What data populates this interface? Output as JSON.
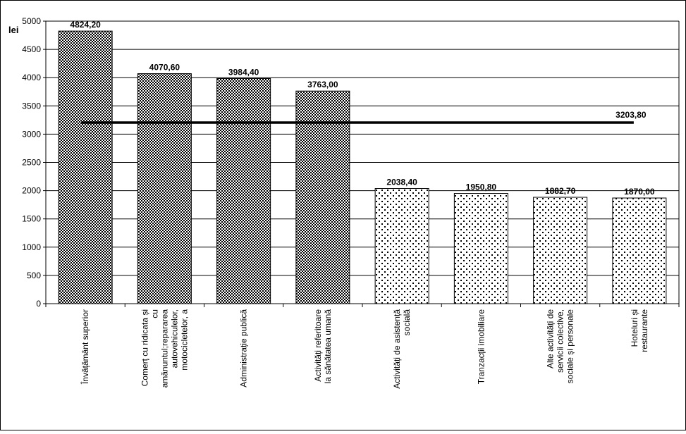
{
  "chart_data": {
    "type": "bar",
    "y_unit_label": "lei",
    "ylim": [
      0,
      5000
    ],
    "y_ticks": [
      0,
      500,
      1000,
      1500,
      2000,
      2500,
      3000,
      3500,
      4000,
      4500,
      5000
    ],
    "grid": true,
    "categories": [
      [
        "Învățământ superior"
      ],
      [
        "Comerț cu ridicata și",
        "cu",
        "amănuntul;repararea",
        "autovehiculelor,",
        "motocicletelor, a"
      ],
      [
        "Administrație publică"
      ],
      [
        "Activități referitoare",
        "la sănătatea umană"
      ],
      [
        "Activități de asistență",
        "socială"
      ],
      [
        "Tranzacții imobiliare"
      ],
      [
        "Alte activități de",
        "servicii colective,",
        "sociale și personale"
      ],
      [
        "Hoteluri și",
        "restaurante"
      ]
    ],
    "values": [
      4824.2,
      4070.6,
      3984.4,
      3763.0,
      2038.4,
      1950.8,
      1882.7,
      1870.0
    ],
    "value_labels": [
      "4824,20",
      "4070,60",
      "3984,40",
      "3763,00",
      "2038,40",
      "1950,80",
      "1882,70",
      "1870,00"
    ],
    "bar_patterns": [
      "checker",
      "checker",
      "checker",
      "checker",
      "dots",
      "dots",
      "dots",
      "dots"
    ],
    "reference_line": {
      "value": 3203.8,
      "label": "3203,80"
    }
  }
}
